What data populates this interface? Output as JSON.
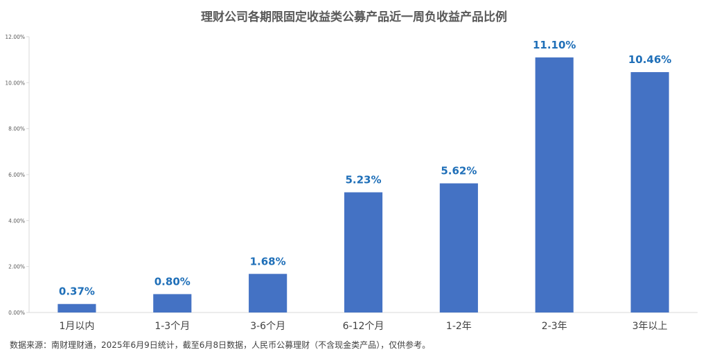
{
  "chart_data": {
    "type": "bar",
    "title": "理财公司各期限固定收益类公募产品近一周负收益产品比例",
    "xlabel": "",
    "ylabel": "",
    "categories": [
      "1月以内",
      "1-3个月",
      "3-6个月",
      "6-12个月",
      "1-2年",
      "2-3年",
      "3年以上"
    ],
    "values": [
      0.37,
      0.8,
      1.68,
      5.23,
      5.62,
      11.1,
      10.46
    ],
    "data_labels": [
      "0.37%",
      "0.80%",
      "1.68%",
      "5.23%",
      "5.62%",
      "11.10%",
      "10.46%"
    ],
    "ylim": [
      0,
      12
    ],
    "yticks": [
      0,
      2,
      4,
      6,
      8,
      10,
      12
    ],
    "ytick_labels": [
      "0.00%",
      "2.00%",
      "4.00%",
      "6.00%",
      "8.00%",
      "10.00%",
      "12.00%"
    ],
    "grid": false,
    "legend": "none",
    "colors": {
      "bar": "#4472C4",
      "data_label": "#1F6FB8",
      "axis": "#D9D9D9",
      "title": "#595959"
    }
  },
  "footer": {
    "source": "数据来源：南财理财通，2025年6月9日统计，截至6月8日数据，人民币公募理财（不含现金类产品），仅供参考。"
  }
}
